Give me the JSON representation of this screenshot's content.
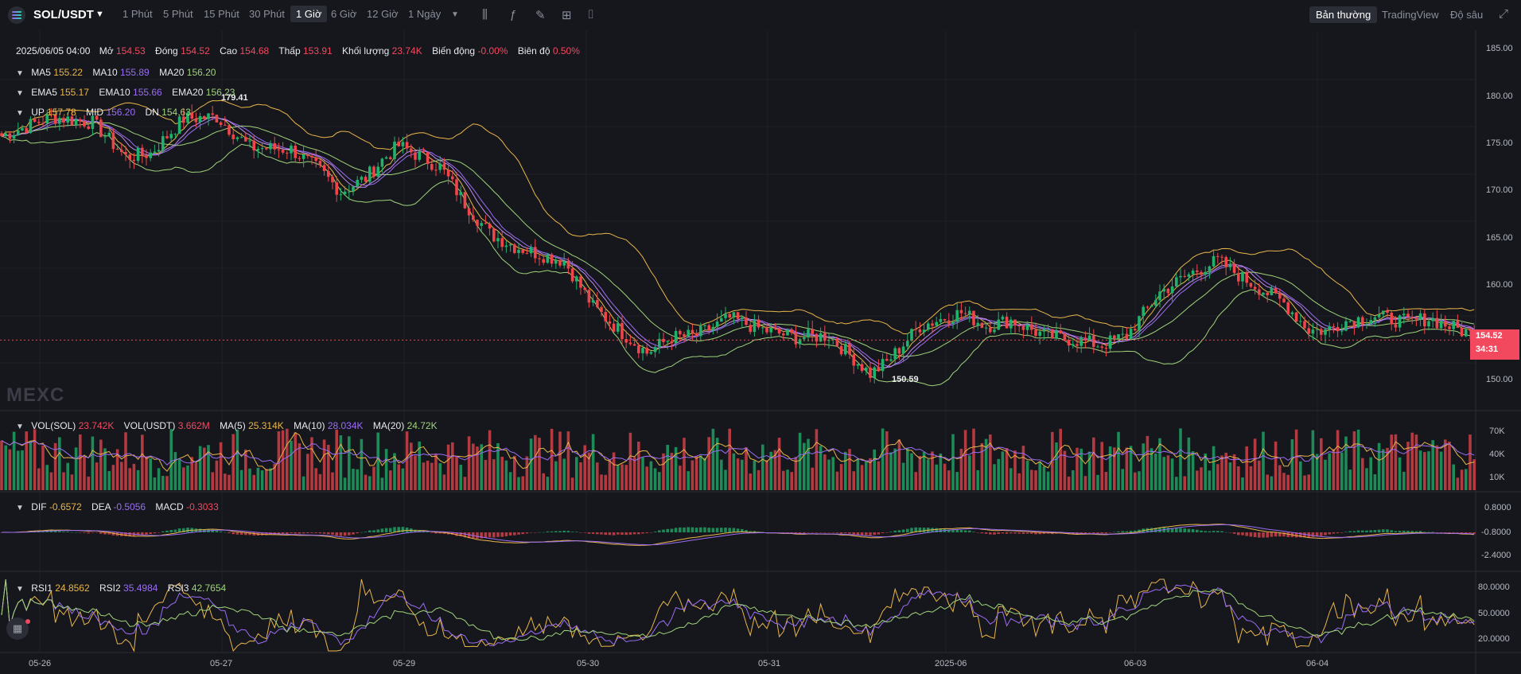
{
  "header": {
    "pair": "SOL/USDT",
    "timeframes": [
      "1 Phút",
      "5 Phút",
      "15 Phút",
      "30 Phút",
      "1 Giờ",
      "6 Giờ",
      "12 Giờ",
      "1 Ngày"
    ],
    "active_timeframe": "1 Giờ",
    "views": [
      "Bản thường",
      "TradingView",
      "Độ sâu"
    ],
    "active_view": "Bản thường",
    "tools": [
      "indicator-icon",
      "formula-icon",
      "draw-icon",
      "layout-icon",
      "camera-icon",
      "fullscreen-icon"
    ]
  },
  "ohlc": {
    "date": "2025/06/05 04:00",
    "open_label": "Mở",
    "open": "154.53",
    "close_label": "Đóng",
    "close": "154.52",
    "high_label": "Cao",
    "high": "154.68",
    "low_label": "Thấp",
    "low": "153.91",
    "vol_label": "Khối lượng",
    "vol": "23.74K",
    "change_label": "Biến động",
    "change": "-0.00%",
    "amp_label": "Biên độ",
    "amp": "0.50%"
  },
  "ma": {
    "ma5_label": "MA5",
    "ma5": "155.22",
    "ma10_label": "MA10",
    "ma10": "155.89",
    "ma20_label": "MA20",
    "ma20": "156.20"
  },
  "ema": {
    "ema5_label": "EMA5",
    "ema5": "155.17",
    "ema10_label": "EMA10",
    "ema10": "155.66",
    "ema20_label": "EMA20",
    "ema20": "156.23"
  },
  "boll": {
    "up_label": "UP",
    "up": "157.78",
    "mid_label": "MID",
    "mid": "156.20",
    "dn_label": "DN",
    "dn": "154.63"
  },
  "annotations": {
    "high": "179.41",
    "low": "150.59"
  },
  "vol": {
    "sol_label": "VOL(SOL)",
    "sol": "23.742K",
    "usdt_label": "VOL(USDT)",
    "usdt": "3.662M",
    "ma5_label": "MA(5)",
    "ma5": "25.314K",
    "ma10_label": "MA(10)",
    "ma10": "28.034K",
    "ma20_label": "MA(20)",
    "ma20": "24.72K"
  },
  "macd": {
    "dif_label": "DIF",
    "dif": "-0.6572",
    "dea_label": "DEA",
    "dea": "-0.5056",
    "macd_label": "MACD",
    "macd": "-0.3033"
  },
  "rsi": {
    "rsi1_label": "RSI1",
    "rsi1": "24.8562",
    "rsi2_label": "RSI2",
    "rsi2": "35.4984",
    "rsi3_label": "RSI3",
    "rsi3": "42.7654"
  },
  "price_axis": [
    "185.00",
    "180.00",
    "175.00",
    "170.00",
    "165.00",
    "160.00",
    "150.00"
  ],
  "vol_axis": [
    "70K",
    "40K",
    "10K"
  ],
  "macd_axis": [
    "0.8000",
    "-0.8000",
    "-2.4000"
  ],
  "rsi_axis": [
    "80.0000",
    "50.0000",
    "20.0000"
  ],
  "x_axis": [
    "05-26",
    "05-27",
    "05-29",
    "05-30",
    "05-31",
    "2025-06",
    "06-03",
    "06-04"
  ],
  "last_price": {
    "price": "154.52",
    "countdown": "34:31"
  },
  "watermark": "MEXC",
  "colors": {
    "up": "#20b26c",
    "down": "#ef454a",
    "bg": "#16171c",
    "ma5": "#e8b54a",
    "ma10": "#9a6df5",
    "ma20": "#9fd37a"
  },
  "chart_data": {
    "type": "candlestick",
    "anchors": [
      [
        0,
        175.8
      ],
      [
        12,
        177.8
      ],
      [
        22,
        177.2
      ],
      [
        30,
        173.6
      ],
      [
        36,
        174.0
      ],
      [
        44,
        177.6
      ],
      [
        52,
        177.8
      ],
      [
        60,
        174.6
      ],
      [
        70,
        174.4
      ],
      [
        77,
        172.2
      ],
      [
        82,
        170.0
      ],
      [
        88,
        171.4
      ],
      [
        92,
        173.3
      ],
      [
        96,
        174.8
      ],
      [
        106,
        172.6
      ],
      [
        112,
        168.8
      ],
      [
        118,
        165.6
      ],
      [
        124,
        164.3
      ],
      [
        130,
        163.5
      ],
      [
        136,
        162.8
      ],
      [
        143,
        158.0
      ],
      [
        150,
        155.3
      ],
      [
        156,
        153.2
      ],
      [
        162,
        154.8
      ],
      [
        168,
        155.0
      ],
      [
        176,
        156.8
      ],
      [
        184,
        155.6
      ],
      [
        192,
        154.8
      ],
      [
        200,
        155.0
      ],
      [
        206,
        152.6
      ],
      [
        210,
        151.0
      ],
      [
        214,
        152.2
      ],
      [
        222,
        156.0
      ],
      [
        232,
        157.4
      ],
      [
        238,
        156.0
      ],
      [
        244,
        156.6
      ],
      [
        252,
        155.0
      ],
      [
        260,
        154.5
      ],
      [
        266,
        154.0
      ],
      [
        272,
        155.0
      ],
      [
        280,
        159.5
      ],
      [
        288,
        161.6
      ],
      [
        294,
        162.8
      ],
      [
        300,
        161.0
      ],
      [
        310,
        158.4
      ],
      [
        316,
        155.6
      ],
      [
        320,
        155.5
      ],
      [
        325,
        156.5
      ],
      [
        332,
        157.0
      ],
      [
        340,
        156.4
      ],
      [
        345,
        156.8
      ],
      [
        356,
        155.0
      ]
    ],
    "ylim": [
      147,
      186
    ],
    "last_price": 154.52
  }
}
